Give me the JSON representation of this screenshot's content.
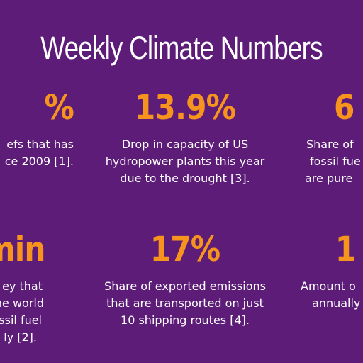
{
  "title": "Weekly Climate Numbers",
  "colors": {
    "background": "#5d1c78",
    "accent": "#f7941e",
    "text": "#ffffff"
  },
  "cards": [
    {
      "value": "%",
      "lines": [
        "efs that has",
        "ce 2009 [1]."
      ]
    },
    {
      "value": "13.9%",
      "lines": [
        "Drop in capacity of US",
        "hydropower plants this year",
        "due to the drought [3]."
      ]
    },
    {
      "value": "6",
      "lines": [
        "Share of",
        "fossil fue",
        "are pure"
      ]
    },
    {
      "value": "min",
      "lines": [
        "ey that",
        "the world",
        "ossil fuel",
        "ly [2]."
      ]
    },
    {
      "value": "17%",
      "lines": [
        "Share of exported emissions",
        "that are transported on just",
        "10 shipping routes [4]."
      ]
    },
    {
      "value": "1",
      "lines": [
        "Amount o",
        "annually"
      ]
    }
  ]
}
